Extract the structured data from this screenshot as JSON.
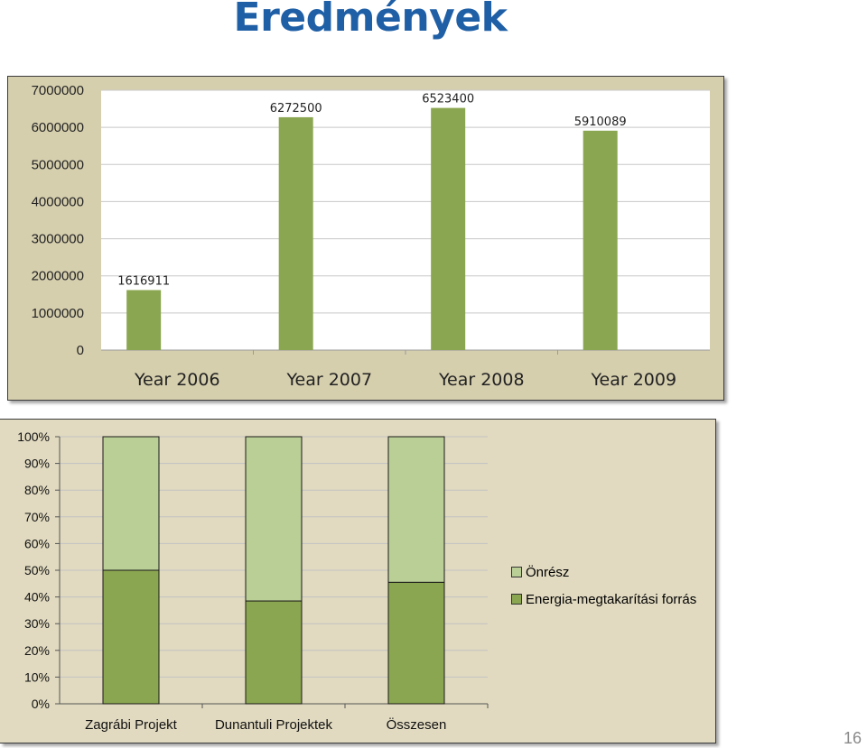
{
  "slide": {
    "title": "Eredmények",
    "page_number": "16"
  },
  "chart_data": [
    {
      "type": "bar",
      "categories": [
        "Year 2006",
        "Year 2007",
        "Year 2008",
        "Year 2009"
      ],
      "values": [
        1616911,
        6272500,
        6523400,
        5910089
      ],
      "data_labels": [
        "1616911",
        "6272500",
        "6523400",
        "5910089"
      ],
      "yticks": [
        "0",
        "1000000",
        "2000000",
        "3000000",
        "4000000",
        "5000000",
        "6000000",
        "7000000"
      ],
      "ylim": [
        0,
        7000000
      ],
      "grid": true,
      "colors": {
        "bar": "#8aa650",
        "plot_bg": "#ffffff",
        "chart_bg": "#d6cfae",
        "grid": "#c8c8c8"
      }
    },
    {
      "type": "bar",
      "stacked": true,
      "percent": true,
      "categories": [
        "Zagrábi Projekt",
        "Dunantuli Projektek",
        "Összesen"
      ],
      "series": [
        {
          "name": "Energia-megtakarítási forrás",
          "values": [
            50,
            38.5,
            45.5
          ],
          "color": "#8aa650"
        },
        {
          "name": "Önrész",
          "values": [
            50,
            61.5,
            54.5
          ],
          "color": "#b9cf96"
        }
      ],
      "yticks": [
        "0%",
        "10%",
        "20%",
        "30%",
        "40%",
        "50%",
        "60%",
        "70%",
        "80%",
        "90%",
        "100%"
      ],
      "ylim": [
        0,
        100
      ],
      "grid": true,
      "legend": "right",
      "colors": {
        "plot_bg": "#e1dac0",
        "grid": "#c2c2c2"
      }
    }
  ]
}
